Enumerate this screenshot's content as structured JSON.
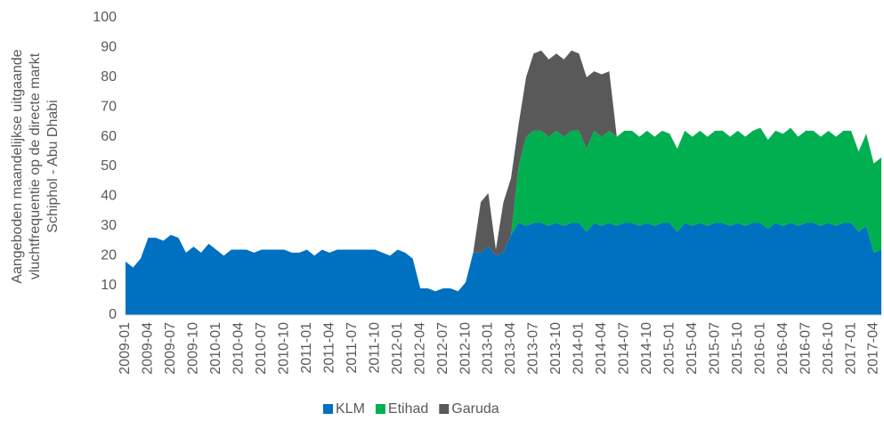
{
  "chart_data": {
    "type": "stacked-area",
    "ylabel": [
      "Aangeboden maandelijkse uitgaande",
      "vluchtfrequentie op de directe markt",
      "Schiphol - Abu Dhabi"
    ],
    "categories": [
      "2009-01",
      null,
      null,
      "2009-04",
      null,
      null,
      "2009-07",
      null,
      null,
      "2009-10",
      null,
      null,
      "2010-01",
      null,
      null,
      "2010-04",
      null,
      null,
      "2010-07",
      null,
      null,
      "2010-10",
      null,
      null,
      "2011-01",
      null,
      null,
      "2011-04",
      null,
      null,
      "2011-07",
      null,
      null,
      "2011-10",
      null,
      null,
      "2012-01",
      null,
      null,
      "2012-04",
      null,
      null,
      "2012-07",
      null,
      null,
      "2012-10",
      null,
      null,
      "2013-01",
      null,
      null,
      "2013-04",
      null,
      null,
      "2013-07",
      null,
      null,
      "2013-10",
      null,
      null,
      "2014-01",
      null,
      null,
      "2014-04",
      null,
      null,
      "2014-07",
      null,
      null,
      "2014-10",
      null,
      null,
      "2015-01",
      null,
      null,
      "2015-04",
      null,
      null,
      "2015-07",
      null,
      null,
      "2015-10",
      null,
      null,
      "2016-01",
      null,
      null,
      "2016-04",
      null,
      null,
      "2016-07",
      null,
      null,
      "2016-10",
      null,
      null,
      "2017-01",
      null,
      null,
      "2017-04",
      null
    ],
    "series": [
      {
        "name": "KLM",
        "color": "#0070c0",
        "values": [
          18,
          16,
          19,
          26,
          26,
          25,
          27,
          26,
          21,
          23,
          21,
          24,
          22,
          20,
          22,
          22,
          22,
          21,
          22,
          22,
          22,
          22,
          21,
          21,
          22,
          20,
          22,
          21,
          22,
          22,
          22,
          22,
          22,
          22,
          21,
          20,
          22,
          21,
          19,
          9,
          9,
          8,
          9,
          9,
          8,
          11,
          21,
          21,
          23,
          20,
          21,
          27,
          31,
          30,
          31,
          31,
          30,
          31,
          30,
          31,
          31,
          28,
          31,
          30,
          31,
          30,
          31,
          31,
          30,
          31,
          30,
          31,
          31,
          28,
          31,
          30,
          31,
          30,
          31,
          31,
          30,
          31,
          30,
          31,
          31,
          29,
          31,
          30,
          31,
          30,
          31,
          31,
          30,
          31,
          30,
          31,
          31,
          28,
          30,
          21,
          22
        ]
      },
      {
        "name": "Etihad",
        "color": "#00b050",
        "values": [
          0,
          0,
          0,
          0,
          0,
          0,
          0,
          0,
          0,
          0,
          0,
          0,
          0,
          0,
          0,
          0,
          0,
          0,
          0,
          0,
          0,
          0,
          0,
          0,
          0,
          0,
          0,
          0,
          0,
          0,
          0,
          0,
          0,
          0,
          0,
          0,
          0,
          0,
          0,
          0,
          0,
          0,
          0,
          0,
          0,
          0,
          0,
          0,
          0,
          0,
          0,
          0,
          19,
          30,
          31,
          31,
          30,
          31,
          30,
          31,
          31,
          28,
          31,
          30,
          31,
          30,
          31,
          31,
          30,
          31,
          30,
          31,
          30,
          28,
          31,
          30,
          31,
          30,
          31,
          31,
          30,
          31,
          30,
          31,
          32,
          30,
          31,
          31,
          32,
          30,
          31,
          31,
          30,
          31,
          30,
          31,
          31,
          27,
          31,
          30,
          31
        ]
      },
      {
        "name": "Garuda",
        "color": "#595959",
        "values": [
          0,
          0,
          0,
          0,
          0,
          0,
          0,
          0,
          0,
          0,
          0,
          0,
          0,
          0,
          0,
          0,
          0,
          0,
          0,
          0,
          0,
          0,
          0,
          0,
          0,
          0,
          0,
          0,
          0,
          0,
          0,
          0,
          0,
          0,
          0,
          0,
          0,
          0,
          0,
          0,
          0,
          0,
          0,
          0,
          0,
          0,
          0,
          17,
          18,
          2,
          17,
          19,
          14,
          20,
          26,
          27,
          26,
          26,
          26,
          27,
          26,
          24,
          20,
          21,
          20,
          0,
          0,
          0,
          0,
          0,
          0,
          0,
          0,
          0,
          0,
          0,
          0,
          0,
          0,
          0,
          0,
          0,
          0,
          0,
          0,
          0,
          0,
          0,
          0,
          0,
          0,
          0,
          0,
          0,
          0,
          0,
          0,
          0,
          0,
          0,
          0
        ]
      }
    ],
    "ylim": [
      0,
      100
    ],
    "yticks": [
      0,
      10,
      20,
      30,
      40,
      50,
      60,
      70,
      80,
      90,
      100
    ],
    "legend": "bottom"
  }
}
